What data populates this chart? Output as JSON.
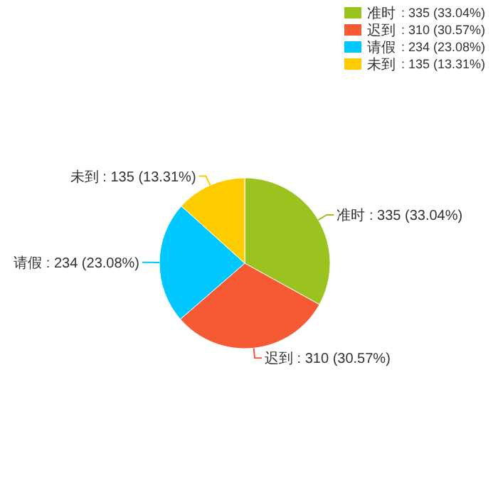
{
  "chart_data": {
    "type": "pie",
    "categories": [
      "准时",
      "迟到",
      "请假",
      "未到"
    ],
    "values": [
      335,
      310,
      234,
      135
    ],
    "colors": [
      "#9bc31f",
      "#f55a34",
      "#00c8ff",
      "#ffcc00"
    ],
    "value_labels": [
      ": 335 (33.04%)",
      ": 310 (30.57%)",
      ": 234 (23.08%)",
      ": 135 (13.31%)"
    ],
    "data_labels": true,
    "legend": "top right"
  }
}
